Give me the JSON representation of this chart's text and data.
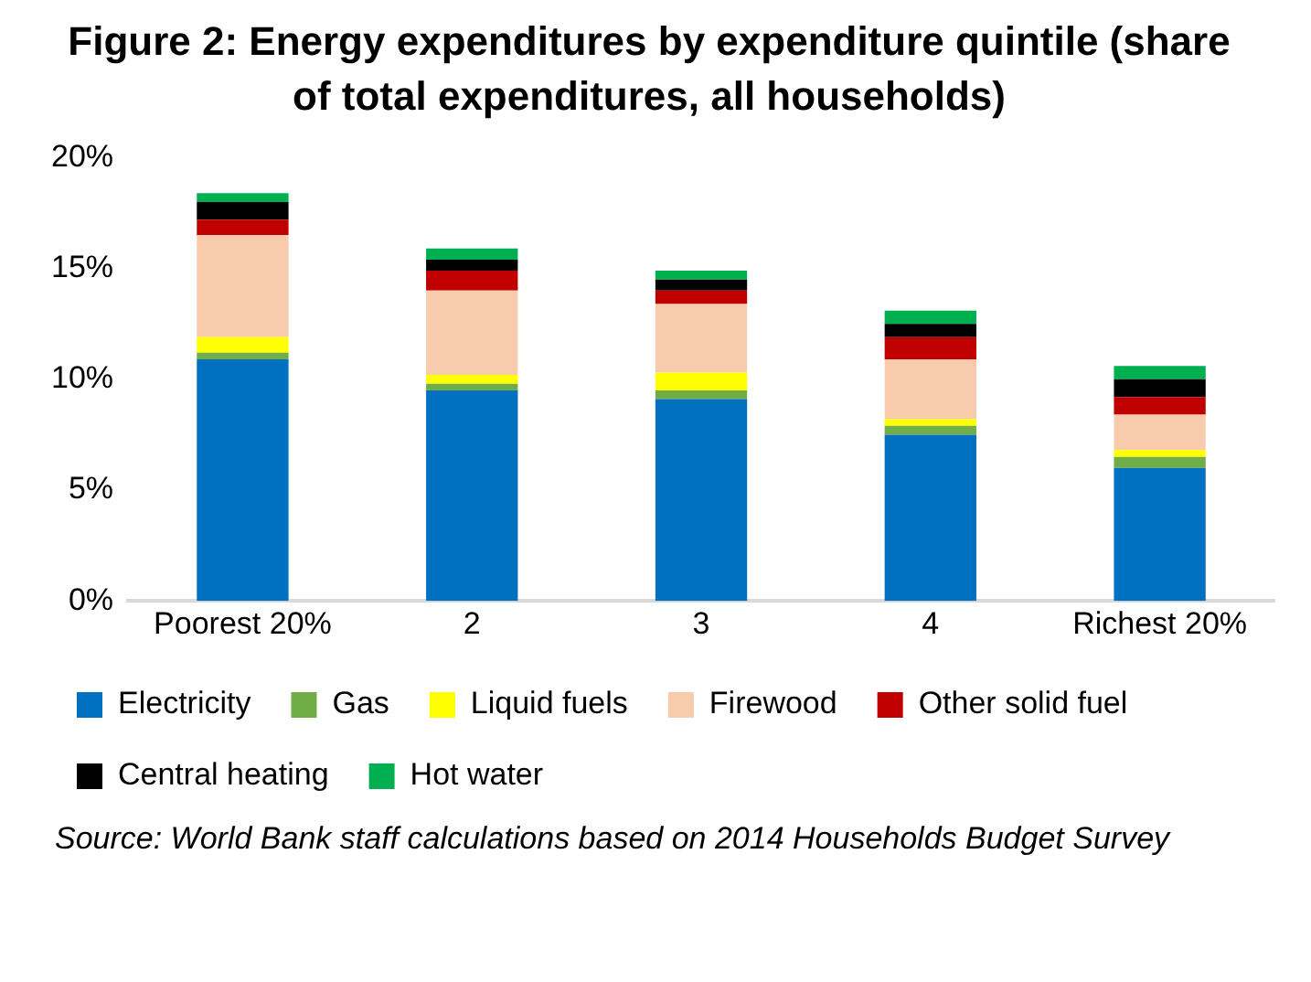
{
  "chart_data": {
    "type": "bar",
    "stacked": true,
    "title": "Figure 2: Energy expenditures by expenditure quintile (share of total expenditures, all households)",
    "categories": [
      "Poorest 20%",
      "2",
      "3",
      "4",
      "Richest 20%"
    ],
    "series": [
      {
        "name": "Electricity",
        "color": "#0070c0",
        "values": [
          10.9,
          9.5,
          9.1,
          7.5,
          6.0
        ]
      },
      {
        "name": "Gas",
        "color": "#70ad47",
        "values": [
          0.3,
          0.3,
          0.4,
          0.4,
          0.5
        ]
      },
      {
        "name": "Liquid fuels",
        "color": "#ffff00",
        "values": [
          0.7,
          0.4,
          0.8,
          0.3,
          0.3
        ]
      },
      {
        "name": "Firewood",
        "color": "#f8cbad",
        "values": [
          4.6,
          3.8,
          3.1,
          2.7,
          1.6
        ]
      },
      {
        "name": "Other solid fuel",
        "color": "#c00000",
        "values": [
          0.7,
          0.9,
          0.6,
          1.0,
          0.8
        ]
      },
      {
        "name": "Central heating",
        "color": "#000000",
        "values": [
          0.8,
          0.5,
          0.5,
          0.6,
          0.8
        ]
      },
      {
        "name": "Hot water",
        "color": "#00b050",
        "values": [
          0.4,
          0.5,
          0.4,
          0.6,
          0.6
        ]
      }
    ],
    "ylim": [
      0,
      20
    ],
    "yticks": [
      {
        "value": 0,
        "label": "0%"
      },
      {
        "value": 5,
        "label": "5%"
      },
      {
        "value": 10,
        "label": "10%"
      },
      {
        "value": 15,
        "label": "15%"
      },
      {
        "value": 20,
        "label": "20%"
      }
    ],
    "grid": false,
    "legend": "bottom",
    "annotations": [
      "Source: World Bank staff calculations based on 2014 Households Budget Survey"
    ]
  }
}
